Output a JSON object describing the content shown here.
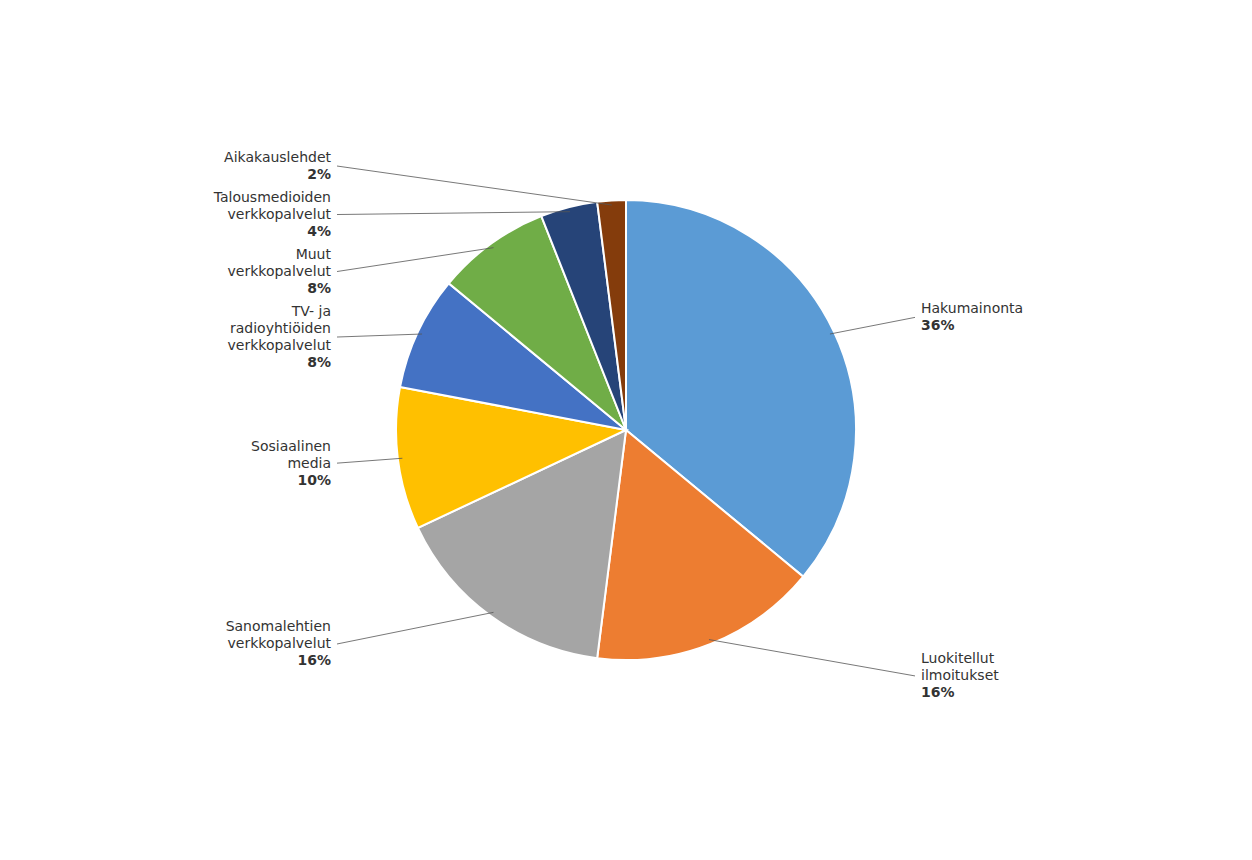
{
  "chart_data": {
    "type": "pie",
    "categories": [
      "Hakumainonta",
      "Luokitellut\nilmoitukset",
      "Sanomalehtien\nverkkopalvelut",
      "Sosiaalinen\nmedia",
      "TV- ja\nradioyhtiöiden\nverkkopalvelut",
      "Muut\nverkkopalvelut",
      "Talousmedioiden\nverkkopalvelut",
      "Aikakauslehdet"
    ],
    "values": [
      36,
      16,
      16,
      10,
      8,
      8,
      4,
      2
    ],
    "value_labels": [
      "36%",
      "16%",
      "16%",
      "10%",
      "8%",
      "8%",
      "4%",
      "2%"
    ],
    "colors": [
      "#5B9BD5",
      "#ED7D31",
      "#A5A5A5",
      "#FFC000",
      "#4472C4",
      "#70AD47",
      "#264478",
      "#843C0C"
    ],
    "data_labels": true
  }
}
